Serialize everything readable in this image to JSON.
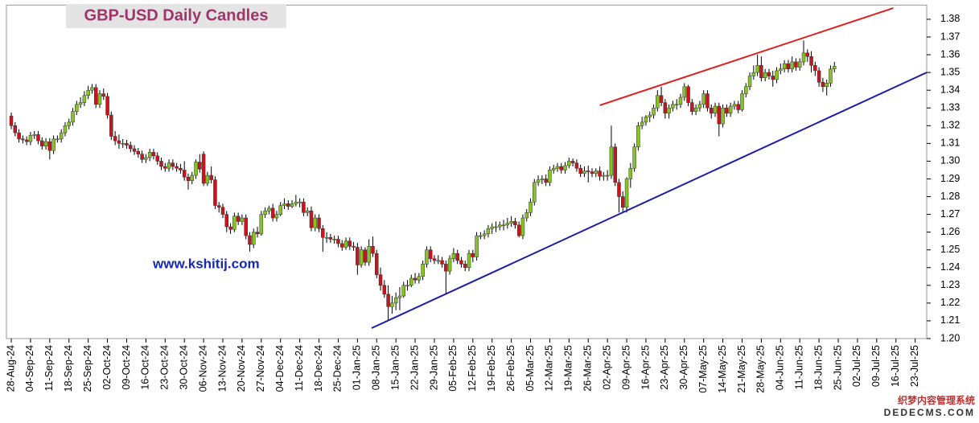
{
  "chart_data": {
    "type": "candlestick",
    "title": "GBP-USD Daily Candles",
    "annotations": [
      "www.kshitij.com",
      "织梦内容管理系统",
      "DEDECMS.COM"
    ],
    "up_color": "#86c424",
    "down_color": "#c8141c",
    "wick_color": "#000000",
    "categories": [
      "28-Aug-24",
      null,
      null,
      null,
      null,
      "04-Sep-24",
      null,
      null,
      null,
      null,
      "11-Sep-24",
      null,
      null,
      null,
      null,
      "18-Sep-24",
      null,
      null,
      null,
      null,
      "25-Sep-24",
      null,
      null,
      null,
      null,
      "02-Oct-24",
      null,
      null,
      null,
      null,
      "09-Oct-24",
      null,
      null,
      null,
      null,
      "16-Oct-24",
      null,
      null,
      null,
      null,
      "23-Oct-24",
      null,
      null,
      null,
      null,
      "30-Oct-24",
      null,
      null,
      null,
      null,
      "06-Nov-24",
      null,
      null,
      null,
      null,
      "13-Nov-24",
      null,
      null,
      null,
      null,
      "20-Nov-24",
      null,
      null,
      null,
      null,
      "27-Nov-24",
      null,
      null,
      null,
      null,
      "04-Dec-24",
      null,
      null,
      null,
      null,
      "11-Dec-24",
      null,
      null,
      null,
      null,
      "18-Dec-24",
      null,
      null,
      null,
      null,
      "25-Dec-24",
      null,
      null,
      null,
      null,
      "01-Jan-25",
      null,
      null,
      null,
      null,
      "08-Jan-25",
      null,
      null,
      null,
      null,
      "15-Jan-25",
      null,
      null,
      null,
      null,
      "22-Jan-25",
      null,
      null,
      null,
      null,
      "29-Jan-25",
      null,
      null,
      null,
      null,
      "05-Feb-25",
      null,
      null,
      null,
      null,
      "12-Feb-25",
      null,
      null,
      null,
      null,
      "19-Feb-25",
      null,
      null,
      null,
      null,
      "26-Feb-25",
      null,
      null,
      null,
      null,
      "05-Mar-25",
      null,
      null,
      null,
      null,
      "12-Mar-25",
      null,
      null,
      null,
      null,
      "19-Mar-25",
      null,
      null,
      null,
      null,
      "26-Mar-25",
      null,
      null,
      null,
      null,
      "02-Apr-25",
      null,
      null,
      null,
      null,
      "09-Apr-25",
      null,
      null,
      null,
      null,
      "16-Apr-25",
      null,
      null,
      null,
      null,
      "23-Apr-25",
      null,
      null,
      null,
      null,
      "30-Apr-25",
      null,
      null,
      null,
      null,
      "07-May-25",
      null,
      null,
      null,
      null,
      "14-May-25",
      null,
      null,
      null,
      null,
      "21-May-25",
      null,
      null,
      null,
      null,
      "28-May-25",
      null,
      null,
      null,
      null,
      "04-Jun-25",
      null,
      null,
      null,
      null,
      "11-Jun-25",
      null,
      null,
      null,
      null,
      "18-Jun-25",
      null,
      null,
      null,
      null,
      "25-Jun-25",
      null,
      null,
      null,
      null,
      "02-Jul-25",
      null,
      null,
      null,
      null,
      "09-Jul-25",
      null,
      null,
      null,
      null,
      "16-Jul-25",
      null,
      null,
      null,
      null,
      "23-Jul-25"
    ],
    "open": [
      1.3255,
      1.32,
      1.316,
      1.3125,
      1.312,
      1.311,
      1.3145,
      1.315,
      1.3115,
      1.3085,
      1.311,
      1.306,
      1.3125,
      1.3125,
      1.316,
      1.32,
      1.322,
      1.328,
      1.332,
      1.333,
      1.337,
      1.34,
      1.3415,
      1.332,
      1.338,
      1.3365,
      1.326,
      1.314,
      1.3115,
      1.31,
      1.31,
      1.309,
      1.307,
      1.3055,
      1.304,
      1.301,
      1.302,
      1.305,
      1.303,
      1.3,
      1.297,
      1.296,
      1.299,
      1.297,
      1.296,
      1.295,
      1.291,
      1.289,
      1.292,
      1.2995,
      1.304,
      1.2875,
      1.292,
      1.2895,
      1.275,
      1.274,
      1.27,
      1.263,
      1.2615,
      1.269,
      1.266,
      1.268,
      1.258,
      1.253,
      1.26,
      1.259,
      1.27,
      1.272,
      1.2735,
      1.268,
      1.27,
      1.275,
      1.276,
      1.2745,
      1.276,
      1.277,
      1.277,
      1.271,
      1.272,
      1.2625,
      1.268,
      1.262,
      1.257,
      1.257,
      1.256,
      1.256,
      1.2535,
      1.2515,
      1.255,
      1.252,
      1.2515,
      1.2415,
      1.25,
      1.243,
      1.252,
      1.248,
      1.236,
      1.23,
      1.225,
      1.218,
      1.22,
      1.223,
      1.224,
      1.23,
      1.23,
      1.234,
      1.233,
      1.235,
      1.242,
      1.25,
      1.245,
      1.244,
      1.244,
      1.242,
      1.238,
      1.245,
      1.248,
      1.244,
      1.242,
      1.24,
      1.248,
      1.246,
      1.258,
      1.258,
      1.259,
      1.262,
      1.263,
      1.263,
      1.264,
      1.264,
      1.265,
      1.266,
      1.264,
      1.258,
      1.268,
      1.271,
      1.277,
      1.288,
      1.2895,
      1.29,
      1.288,
      1.295,
      1.296,
      1.297,
      1.295,
      1.2975,
      1.3,
      1.299,
      1.296,
      1.293,
      1.2945,
      1.294,
      1.293,
      1.2945,
      1.2915,
      1.292,
      1.292,
      1.308,
      1.288,
      1.28,
      1.274,
      1.29,
      1.296,
      1.308,
      1.32,
      1.322,
      1.325,
      1.326,
      1.33,
      1.337,
      1.333,
      1.327,
      1.33,
      1.332,
      1.332,
      1.336,
      1.342,
      1.333,
      1.328,
      1.33,
      1.332,
      1.338,
      1.33,
      1.327,
      1.331,
      1.321,
      1.33,
      1.327,
      1.331,
      1.332,
      1.329,
      1.338,
      1.342,
      1.348,
      1.35,
      1.354,
      1.347,
      1.35,
      1.348,
      1.346,
      1.351,
      1.352,
      1.355,
      1.352,
      1.356,
      1.353,
      1.356,
      1.361,
      1.359,
      1.354,
      1.351,
      1.3445,
      1.342,
      1.344,
      1.352,
      null,
      null,
      null,
      null,
      null,
      null,
      null,
      null,
      null,
      null,
      null,
      null,
      null,
      null,
      null,
      null,
      null,
      null,
      null,
      null,
      null
    ],
    "high": [
      1.3275,
      1.322,
      1.318,
      1.3145,
      1.314,
      1.3165,
      1.317,
      1.317,
      1.3135,
      1.313,
      1.313,
      1.3145,
      1.3145,
      1.318,
      1.322,
      1.324,
      1.33,
      1.334,
      1.336,
      1.3395,
      1.3425,
      1.3435,
      1.3435,
      1.34,
      1.341,
      1.3385,
      1.328,
      1.317,
      1.315,
      1.3125,
      1.312,
      1.311,
      1.309,
      1.3075,
      1.306,
      1.304,
      1.307,
      1.307,
      1.305,
      1.302,
      1.299,
      1.301,
      1.301,
      1.299,
      1.2985,
      1.3,
      1.293,
      1.294,
      1.301,
      1.304,
      1.3055,
      1.294,
      1.297,
      1.2915,
      1.277,
      1.276,
      1.272,
      1.265,
      1.271,
      1.271,
      1.27,
      1.27,
      1.26,
      1.262,
      1.263,
      1.272,
      1.274,
      1.275,
      1.276,
      1.272,
      1.277,
      1.279,
      1.278,
      1.278,
      1.281,
      1.279,
      1.279,
      1.274,
      1.2745,
      1.27,
      1.27,
      1.264,
      1.26,
      1.259,
      1.258,
      1.258,
      1.2555,
      1.257,
      1.257,
      1.2545,
      1.254,
      1.252,
      1.2515,
      1.256,
      1.2575,
      1.25,
      1.24,
      1.233,
      1.23,
      1.224,
      1.226,
      1.229,
      1.232,
      1.233,
      1.236,
      1.237,
      1.237,
      1.244,
      1.252,
      1.252,
      1.247,
      1.247,
      1.246,
      1.244,
      1.247,
      1.251,
      1.25,
      1.246,
      1.244,
      1.25,
      1.25,
      1.26,
      1.26,
      1.261,
      1.264,
      1.265,
      1.266,
      1.266,
      1.267,
      1.268,
      1.269,
      1.268,
      1.266,
      1.27,
      1.273,
      1.279,
      1.29,
      1.292,
      1.292,
      1.2925,
      1.297,
      1.298,
      1.299,
      1.299,
      1.2995,
      1.302,
      1.3015,
      1.301,
      1.298,
      1.297,
      1.2975,
      1.296,
      1.296,
      1.297,
      1.294,
      1.295,
      1.32,
      1.31,
      1.29,
      1.283,
      1.291,
      1.299,
      1.31,
      1.322,
      1.325,
      1.326,
      1.328,
      1.332,
      1.34,
      1.342,
      1.335,
      1.332,
      1.334,
      1.335,
      1.338,
      1.344,
      1.343,
      1.335,
      1.332,
      1.334,
      1.34,
      1.34,
      1.332,
      1.333,
      1.333,
      1.332,
      1.332,
      1.333,
      1.334,
      1.334,
      1.34,
      1.344,
      1.35,
      1.354,
      1.36,
      1.359,
      1.352,
      1.352,
      1.351,
      1.353,
      1.355,
      1.357,
      1.357,
      1.359,
      1.358,
      1.358,
      1.368,
      1.363,
      1.362,
      1.356,
      1.353,
      1.347,
      1.346,
      1.354,
      1.356,
      null,
      null,
      null,
      null,
      null,
      null,
      null,
      null,
      null,
      null,
      null,
      null,
      null,
      null,
      null,
      null,
      null,
      null,
      null,
      null,
      null
    ],
    "low": [
      1.318,
      1.314,
      1.3105,
      1.31,
      1.309,
      1.309,
      1.3125,
      1.3095,
      1.3065,
      1.3065,
      1.301,
      1.304,
      1.3105,
      1.3105,
      1.314,
      1.318,
      1.32,
      1.326,
      1.33,
      1.331,
      1.335,
      1.338,
      1.33,
      1.33,
      1.3345,
      1.324,
      1.312,
      1.309,
      1.307,
      1.3075,
      1.307,
      1.305,
      1.3035,
      1.302,
      1.299,
      1.299,
      1.3,
      1.301,
      1.298,
      1.295,
      1.294,
      1.294,
      1.295,
      1.294,
      1.293,
      1.289,
      1.284,
      1.287,
      1.29,
      1.2935,
      1.286,
      1.286,
      1.2875,
      1.273,
      1.271,
      1.268,
      1.26,
      1.259,
      1.26,
      1.264,
      1.264,
      1.256,
      1.249,
      1.251,
      1.257,
      1.258,
      1.268,
      1.27,
      1.266,
      1.266,
      1.269,
      1.273,
      1.2725,
      1.2735,
      1.2745,
      1.274,
      1.269,
      1.269,
      1.2605,
      1.2605,
      1.26,
      1.249,
      1.254,
      1.254,
      1.2535,
      1.2515,
      1.2495,
      1.25,
      1.25,
      1.2495,
      1.236,
      1.24,
      1.241,
      1.241,
      1.246,
      1.234,
      1.227,
      1.223,
      1.21,
      1.214,
      1.216,
      1.216,
      1.223,
      1.227,
      1.229,
      1.231,
      1.231,
      1.233,
      1.24,
      1.243,
      1.242,
      1.242,
      1.24,
      1.225,
      1.236,
      1.243,
      1.242,
      1.24,
      1.238,
      1.238,
      1.243,
      1.244,
      1.256,
      1.256,
      1.257,
      1.259,
      1.26,
      1.261,
      1.261,
      1.262,
      1.263,
      1.262,
      1.257,
      1.256,
      1.266,
      1.269,
      1.275,
      1.286,
      1.287,
      1.286,
      1.286,
      1.293,
      1.294,
      1.293,
      1.293,
      1.296,
      1.297,
      1.294,
      1.291,
      1.291,
      1.288,
      1.291,
      1.291,
      1.289,
      1.289,
      1.289,
      1.29,
      1.286,
      1.271,
      1.271,
      1.271,
      1.285,
      1.294,
      1.306,
      1.318,
      1.32,
      1.322,
      1.324,
      1.328,
      1.331,
      1.324,
      1.324,
      1.328,
      1.329,
      1.33,
      1.334,
      1.331,
      1.326,
      1.326,
      1.328,
      1.33,
      1.328,
      1.324,
      1.325,
      1.314,
      1.319,
      1.325,
      1.325,
      1.329,
      1.327,
      1.328,
      1.336,
      1.34,
      1.346,
      1.348,
      1.345,
      1.345,
      1.346,
      1.342,
      1.344,
      1.349,
      1.35,
      1.35,
      1.35,
      1.351,
      1.351,
      1.354,
      1.356,
      1.35,
      1.348,
      1.342,
      1.339,
      1.337,
      1.342,
      1.35,
      null,
      null,
      null,
      null,
      null,
      null,
      null,
      null,
      null,
      null,
      null,
      null,
      null,
      null,
      null,
      null,
      null,
      null,
      null,
      null,
      null
    ],
    "close": [
      1.32,
      1.316,
      1.3125,
      1.312,
      1.311,
      1.3145,
      1.315,
      1.3115,
      1.3085,
      1.311,
      1.306,
      1.3125,
      1.3125,
      1.316,
      1.32,
      1.322,
      1.328,
      1.332,
      1.333,
      1.337,
      1.34,
      1.3415,
      1.332,
      1.338,
      1.3365,
      1.326,
      1.314,
      1.3115,
      1.31,
      1.31,
      1.309,
      1.307,
      1.3055,
      1.304,
      1.301,
      1.302,
      1.305,
      1.303,
      1.3,
      1.297,
      1.296,
      1.299,
      1.297,
      1.296,
      1.295,
      1.291,
      1.289,
      1.292,
      1.2995,
      1.2955,
      1.2875,
      1.292,
      1.2895,
      1.275,
      1.274,
      1.27,
      1.263,
      1.2615,
      1.269,
      1.266,
      1.268,
      1.258,
      1.253,
      1.26,
      1.259,
      1.27,
      1.272,
      1.2735,
      1.268,
      1.27,
      1.275,
      1.276,
      1.2745,
      1.276,
      1.277,
      1.277,
      1.271,
      1.272,
      1.2625,
      1.268,
      1.262,
      1.257,
      1.257,
      1.256,
      1.256,
      1.2535,
      1.2515,
      1.255,
      1.252,
      1.2515,
      1.2415,
      1.25,
      1.243,
      1.252,
      1.248,
      1.236,
      1.23,
      1.225,
      1.218,
      1.22,
      1.223,
      1.224,
      1.23,
      1.23,
      1.234,
      1.233,
      1.235,
      1.242,
      1.25,
      1.245,
      1.244,
      1.244,
      1.242,
      1.238,
      1.245,
      1.248,
      1.244,
      1.242,
      1.24,
      1.248,
      1.246,
      1.258,
      1.258,
      1.259,
      1.262,
      1.263,
      1.263,
      1.264,
      1.264,
      1.265,
      1.266,
      1.264,
      1.258,
      1.268,
      1.271,
      1.277,
      1.288,
      1.2895,
      1.29,
      1.288,
      1.295,
      1.296,
      1.297,
      1.295,
      1.2975,
      1.3,
      1.299,
      1.296,
      1.293,
      1.2945,
      1.294,
      1.293,
      1.2945,
      1.2915,
      1.292,
      1.292,
      1.308,
      1.288,
      1.28,
      1.274,
      1.29,
      1.296,
      1.308,
      1.32,
      1.322,
      1.325,
      1.326,
      1.33,
      1.337,
      1.333,
      1.327,
      1.33,
      1.332,
      1.332,
      1.336,
      1.342,
      1.333,
      1.328,
      1.33,
      1.332,
      1.338,
      1.33,
      1.327,
      1.331,
      1.321,
      1.33,
      1.327,
      1.331,
      1.332,
      1.329,
      1.338,
      1.342,
      1.348,
      1.35,
      1.354,
      1.347,
      1.35,
      1.348,
      1.346,
      1.351,
      1.352,
      1.355,
      1.352,
      1.356,
      1.353,
      1.356,
      1.361,
      1.359,
      1.354,
      1.351,
      1.3445,
      1.342,
      1.344,
      1.352,
      1.3535,
      null,
      null,
      null,
      null,
      null,
      null,
      null,
      null,
      null,
      null,
      null,
      null,
      null,
      null,
      null,
      null,
      null,
      null,
      null,
      null,
      null
    ],
    "trendlines": [
      {
        "color": "#e0201c",
        "x": [
          153,
          229.3
        ],
        "y": [
          1.3315,
          1.3863
        ]
      },
      {
        "color": "#1c1ca8",
        "x": [
          93.7,
          238
        ],
        "y": [
          1.2059,
          1.35
        ]
      }
    ],
    "xlim": [
      -1.26,
      238
    ],
    "ylim": [
      1.2,
      1.388
    ],
    "yticks": [
      {
        "value": 1.2,
        "label": "1.20"
      },
      1.21,
      1.22,
      1.23,
      1.24,
      1.25,
      1.26,
      1.27,
      1.28,
      1.29,
      {
        "value": 1.3,
        "label": "1.30"
      },
      1.31,
      1.32,
      1.33,
      1.34,
      1.35,
      1.36,
      1.37,
      1.38
    ],
    "grid": false
  }
}
